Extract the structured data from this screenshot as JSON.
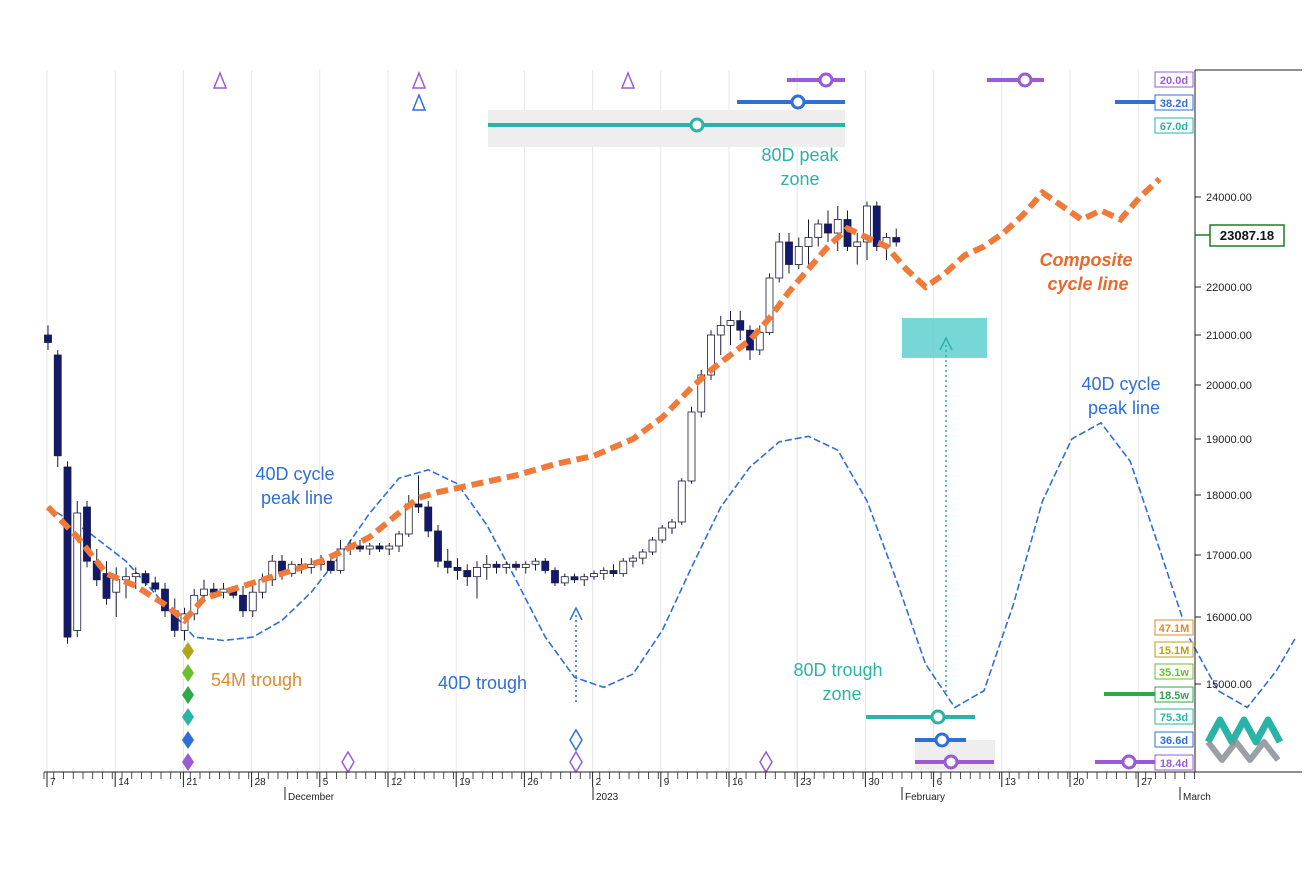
{
  "chart_data": {
    "type": "candlestick",
    "y_ticks": [
      "15000.00",
      "16000.00",
      "17000.00",
      "18000.00",
      "19000.00",
      "20000.00",
      "21000.00",
      "22000.00",
      "24000.00"
    ],
    "last_price": "23087.18",
    "x_day_ticks": [
      "7",
      "14",
      "21",
      "28",
      "5",
      "12",
      "19",
      "26",
      "2",
      "9",
      "16",
      "23",
      "30",
      "6",
      "13",
      "20",
      "27"
    ],
    "x_month_ticks": [
      "December",
      "2023",
      "February",
      "March"
    ],
    "cycle_labels_top": [
      "20.0d",
      "38.2d",
      "67.0d"
    ],
    "cycle_labels_bottom": [
      "47.1M",
      "15.1M",
      "35.1w",
      "18.5w",
      "75.3d",
      "36.6d",
      "18.4d"
    ],
    "annotations": {
      "peak_zone_80d": [
        "80D peak",
        "zone"
      ],
      "composite": [
        "Composite",
        "cycle line"
      ],
      "peak_line_40d_right": [
        "40D cycle",
        "peak line"
      ],
      "peak_line_40d_left": [
        "40D cycle",
        "peak line"
      ],
      "trough_54m": "54M trough",
      "trough_40d": "40D trough",
      "trough_zone_80d": [
        "80D trough",
        "zone"
      ]
    },
    "candles": [
      {
        "o": 21000,
        "h": 21200,
        "l": 20700,
        "c": 20850
      },
      {
        "o": 20600,
        "h": 20700,
        "l": 18500,
        "c": 18700
      },
      {
        "o": 18500,
        "h": 18600,
        "l": 15600,
        "c": 15700
      },
      {
        "o": 15800,
        "h": 17900,
        "l": 15700,
        "c": 17700
      },
      {
        "o": 17800,
        "h": 17900,
        "l": 16800,
        "c": 16900
      },
      {
        "o": 16900,
        "h": 17100,
        "l": 16500,
        "c": 16600
      },
      {
        "o": 16700,
        "h": 16900,
        "l": 16200,
        "c": 16300
      },
      {
        "o": 16400,
        "h": 16800,
        "l": 16000,
        "c": 16600
      },
      {
        "o": 16600,
        "h": 16800,
        "l": 16300,
        "c": 16650
      },
      {
        "o": 16650,
        "h": 16800,
        "l": 16450,
        "c": 16700
      },
      {
        "o": 16700,
        "h": 16750,
        "l": 16500,
        "c": 16550
      },
      {
        "o": 16550,
        "h": 16650,
        "l": 16400,
        "c": 16450
      },
      {
        "o": 16450,
        "h": 16550,
        "l": 16000,
        "c": 16100
      },
      {
        "o": 16100,
        "h": 16300,
        "l": 15700,
        "c": 15800
      },
      {
        "o": 15800,
        "h": 16150,
        "l": 15650,
        "c": 16050
      },
      {
        "o": 16050,
        "h": 16450,
        "l": 15950,
        "c": 16350
      },
      {
        "o": 16350,
        "h": 16600,
        "l": 16250,
        "c": 16450
      },
      {
        "o": 16450,
        "h": 16550,
        "l": 16350,
        "c": 16400
      },
      {
        "o": 16400,
        "h": 16550,
        "l": 16300,
        "c": 16450
      },
      {
        "o": 16450,
        "h": 16500,
        "l": 16300,
        "c": 16350
      },
      {
        "o": 16350,
        "h": 16500,
        "l": 16000,
        "c": 16100
      },
      {
        "o": 16100,
        "h": 16500,
        "l": 16000,
        "c": 16400
      },
      {
        "o": 16400,
        "h": 16700,
        "l": 16300,
        "c": 16600
      },
      {
        "o": 16600,
        "h": 17000,
        "l": 16500,
        "c": 16900
      },
      {
        "o": 16900,
        "h": 17000,
        "l": 16600,
        "c": 16700
      },
      {
        "o": 16700,
        "h": 16900,
        "l": 16650,
        "c": 16850
      },
      {
        "o": 16850,
        "h": 16950,
        "l": 16700,
        "c": 16800
      },
      {
        "o": 16800,
        "h": 16950,
        "l": 16700,
        "c": 16850
      },
      {
        "o": 16850,
        "h": 17000,
        "l": 16750,
        "c": 16900
      },
      {
        "o": 16900,
        "h": 17000,
        "l": 16700,
        "c": 16750
      },
      {
        "o": 16750,
        "h": 17250,
        "l": 16700,
        "c": 17100
      },
      {
        "o": 17100,
        "h": 17250,
        "l": 17000,
        "c": 17150
      },
      {
        "o": 17150,
        "h": 17250,
        "l": 17050,
        "c": 17100
      },
      {
        "o": 17100,
        "h": 17200,
        "l": 17000,
        "c": 17150
      },
      {
        "o": 17150,
        "h": 17200,
        "l": 17050,
        "c": 17100
      },
      {
        "o": 17100,
        "h": 17200,
        "l": 17000,
        "c": 17150
      },
      {
        "o": 17150,
        "h": 17400,
        "l": 17050,
        "c": 17350
      },
      {
        "o": 17350,
        "h": 18000,
        "l": 17300,
        "c": 17850
      },
      {
        "o": 17850,
        "h": 18350,
        "l": 17700,
        "c": 17800
      },
      {
        "o": 17800,
        "h": 17900,
        "l": 17300,
        "c": 17400
      },
      {
        "o": 17400,
        "h": 17500,
        "l": 16800,
        "c": 16900
      },
      {
        "o": 16900,
        "h": 17100,
        "l": 16700,
        "c": 16800
      },
      {
        "o": 16800,
        "h": 16950,
        "l": 16600,
        "c": 16750
      },
      {
        "o": 16750,
        "h": 16850,
        "l": 16500,
        "c": 16650
      },
      {
        "o": 16650,
        "h": 16900,
        "l": 16300,
        "c": 16800
      },
      {
        "o": 16800,
        "h": 17000,
        "l": 16600,
        "c": 16850
      },
      {
        "o": 16850,
        "h": 16900,
        "l": 16700,
        "c": 16800
      },
      {
        "o": 16800,
        "h": 16900,
        "l": 16700,
        "c": 16850
      },
      {
        "o": 16850,
        "h": 16900,
        "l": 16750,
        "c": 16800
      },
      {
        "o": 16800,
        "h": 16900,
        "l": 16700,
        "c": 16850
      },
      {
        "o": 16850,
        "h": 16950,
        "l": 16750,
        "c": 16900
      },
      {
        "o": 16900,
        "h": 16950,
        "l": 16700,
        "c": 16750
      },
      {
        "o": 16750,
        "h": 16800,
        "l": 16500,
        "c": 16550
      },
      {
        "o": 16550,
        "h": 16700,
        "l": 16500,
        "c": 16650
      },
      {
        "o": 16650,
        "h": 16700,
        "l": 16550,
        "c": 16600
      },
      {
        "o": 16600,
        "h": 16700,
        "l": 16500,
        "c": 16650
      },
      {
        "o": 16650,
        "h": 16750,
        "l": 16600,
        "c": 16700
      },
      {
        "o": 16700,
        "h": 16800,
        "l": 16600,
        "c": 16750
      },
      {
        "o": 16750,
        "h": 16850,
        "l": 16650,
        "c": 16700
      },
      {
        "o": 16700,
        "h": 16950,
        "l": 16650,
        "c": 16900
      },
      {
        "o": 16900,
        "h": 17000,
        "l": 16800,
        "c": 16950
      },
      {
        "o": 16950,
        "h": 17100,
        "l": 16850,
        "c": 17050
      },
      {
        "o": 17050,
        "h": 17300,
        "l": 17000,
        "c": 17250
      },
      {
        "o": 17250,
        "h": 17500,
        "l": 17200,
        "c": 17450
      },
      {
        "o": 17450,
        "h": 17600,
        "l": 17350,
        "c": 17550
      },
      {
        "o": 17550,
        "h": 18300,
        "l": 17500,
        "c": 18250
      },
      {
        "o": 18250,
        "h": 19600,
        "l": 18200,
        "c": 19500
      },
      {
        "o": 19500,
        "h": 20300,
        "l": 19400,
        "c": 20200
      },
      {
        "o": 20200,
        "h": 21100,
        "l": 20100,
        "c": 21000
      },
      {
        "o": 21000,
        "h": 21400,
        "l": 20600,
        "c": 21200
      },
      {
        "o": 21200,
        "h": 21500,
        "l": 20800,
        "c": 21300
      },
      {
        "o": 21300,
        "h": 21500,
        "l": 20900,
        "c": 21100
      },
      {
        "o": 21100,
        "h": 21200,
        "l": 20500,
        "c": 20700
      },
      {
        "o": 20700,
        "h": 21200,
        "l": 20600,
        "c": 21050
      },
      {
        "o": 21050,
        "h": 22300,
        "l": 21000,
        "c": 22200
      },
      {
        "o": 22200,
        "h": 23200,
        "l": 22100,
        "c": 23000
      },
      {
        "o": 23000,
        "h": 23200,
        "l": 22300,
        "c": 22500
      },
      {
        "o": 22500,
        "h": 23100,
        "l": 22400,
        "c": 22900
      },
      {
        "o": 22900,
        "h": 23500,
        "l": 22500,
        "c": 23100
      },
      {
        "o": 23100,
        "h": 23500,
        "l": 22900,
        "c": 23400
      },
      {
        "o": 23400,
        "h": 23700,
        "l": 23000,
        "c": 23200
      },
      {
        "o": 23200,
        "h": 23800,
        "l": 22800,
        "c": 23500
      },
      {
        "o": 23500,
        "h": 23700,
        "l": 22800,
        "c": 22900
      },
      {
        "o": 22900,
        "h": 23200,
        "l": 22500,
        "c": 23000
      },
      {
        "o": 23000,
        "h": 23900,
        "l": 22600,
        "c": 23800
      },
      {
        "o": 23800,
        "h": 23900,
        "l": 22800,
        "c": 22900
      },
      {
        "o": 22900,
        "h": 23200,
        "l": 22600,
        "c": 23100
      },
      {
        "o": 23100,
        "h": 23300,
        "l": 22900,
        "c": 23000
      }
    ],
    "composite": [
      [
        0,
        17800
      ],
      [
        3,
        17300
      ],
      [
        6,
        16700
      ],
      [
        9,
        16500
      ],
      [
        12,
        16200
      ],
      [
        14,
        15950
      ],
      [
        16,
        16300
      ],
      [
        18,
        16400
      ],
      [
        20,
        16500
      ],
      [
        22,
        16600
      ],
      [
        25,
        16750
      ],
      [
        28,
        16900
      ],
      [
        30,
        17050
      ],
      [
        33,
        17300
      ],
      [
        36,
        17700
      ],
      [
        38,
        17950
      ],
      [
        40,
        18050
      ],
      [
        44,
        18200
      ],
      [
        48,
        18350
      ],
      [
        52,
        18550
      ],
      [
        56,
        18700
      ],
      [
        60,
        19000
      ],
      [
        63,
        19400
      ],
      [
        66,
        19950
      ],
      [
        68,
        20300
      ],
      [
        70,
        20600
      ],
      [
        72,
        20900
      ],
      [
        74,
        21350
      ],
      [
        76,
        21900
      ],
      [
        78,
        22400
      ],
      [
        80,
        22900
      ],
      [
        82,
        23300
      ],
      [
        84,
        23100
      ],
      [
        86,
        22900
      ],
      [
        88,
        22400
      ],
      [
        90,
        22000
      ],
      [
        92,
        22300
      ],
      [
        94,
        22700
      ],
      [
        96,
        22900
      ],
      [
        98,
        23200
      ],
      [
        100,
        23600
      ],
      [
        102,
        24100
      ],
      [
        104,
        23800
      ],
      [
        106,
        23500
      ],
      [
        108,
        23700
      ],
      [
        110,
        23500
      ],
      [
        112,
        24000
      ],
      [
        114,
        24400
      ]
    ],
    "cycle40d": [
      [
        0,
        17800
      ],
      [
        4,
        17400
      ],
      [
        8,
        16900
      ],
      [
        12,
        16200
      ],
      [
        15,
        15700
      ],
      [
        18,
        15650
      ],
      [
        21,
        15700
      ],
      [
        24,
        15950
      ],
      [
        27,
        16400
      ],
      [
        30,
        17000
      ],
      [
        33,
        17700
      ],
      [
        36,
        18300
      ],
      [
        39,
        18450
      ],
      [
        42,
        18200
      ],
      [
        45,
        17500
      ],
      [
        48,
        16600
      ],
      [
        51,
        15700
      ],
      [
        54,
        15100
      ],
      [
        57,
        14950
      ],
      [
        60,
        15150
      ],
      [
        63,
        15800
      ],
      [
        66,
        16800
      ],
      [
        69,
        17800
      ],
      [
        72,
        18500
      ],
      [
        75,
        18950
      ],
      [
        78,
        19050
      ],
      [
        81,
        18800
      ],
      [
        84,
        17900
      ],
      [
        87,
        16600
      ],
      [
        90,
        15300
      ],
      [
        93,
        14650
      ],
      [
        96,
        14900
      ],
      [
        99,
        16200
      ],
      [
        102,
        17900
      ],
      [
        105,
        19000
      ],
      [
        108,
        19300
      ],
      [
        111,
        18600
      ],
      [
        114,
        17100
      ],
      [
        117,
        15700
      ],
      [
        120,
        14900
      ],
      [
        123,
        14650
      ],
      [
        126,
        15200
      ],
      [
        128,
        15700
      ]
    ]
  }
}
